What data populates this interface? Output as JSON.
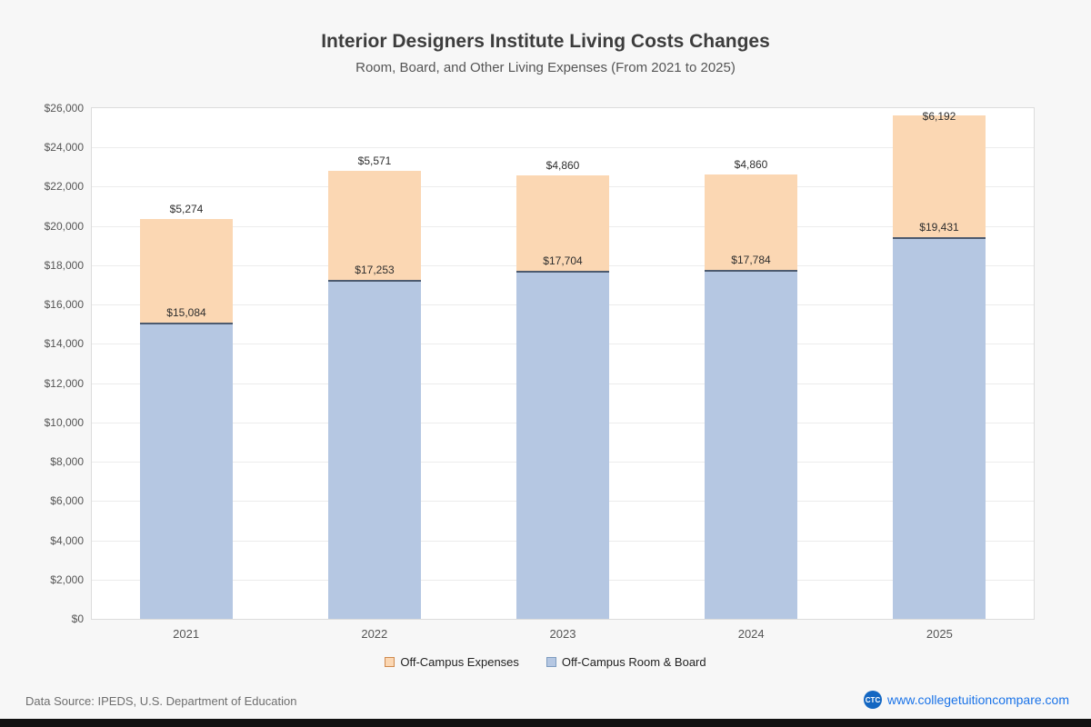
{
  "chart": {
    "title": "Interior Designers Institute Living Costs Changes",
    "subtitle": "Room, Board, and Other Living Expenses (From 2021 to 2025)",
    "legend": [
      "Off-Campus Expenses",
      "Off-Campus Room & Board"
    ]
  },
  "chart_data": {
    "type": "bar",
    "stacked": true,
    "categories": [
      "2021",
      "2022",
      "2023",
      "2024",
      "2025"
    ],
    "series": [
      {
        "name": "Off-Campus Room & Board",
        "color": "#b5c7e2",
        "values": [
          15084,
          17253,
          17704,
          17784,
          19431
        ]
      },
      {
        "name": "Off-Campus Expenses",
        "color": "#fbd7b3",
        "values": [
          5274,
          5571,
          4860,
          4860,
          6192
        ]
      }
    ],
    "title": "Interior Designers Institute Living Costs Changes",
    "xlabel": "",
    "ylabel": "",
    "ylim": [
      0,
      26000
    ],
    "ytick_step": 2000,
    "grid": true,
    "legend_position": "bottom",
    "value_label_format": "$#,###"
  },
  "footer": {
    "source": "Data Source: IPEDS, U.S. Department of Education",
    "site": "www.collegetuitioncompare.com",
    "logo_text": "CTC"
  }
}
